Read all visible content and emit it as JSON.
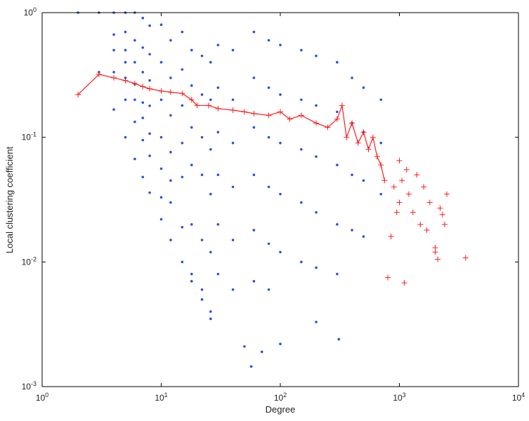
{
  "chart_data": {
    "type": "scatter",
    "title": "",
    "xlabel": "Degree",
    "ylabel": "Local clustering coefficient",
    "xscale": "log",
    "yscale": "log",
    "xlim": [
      1,
      10000
    ],
    "ylim": [
      0.001,
      1
    ],
    "grid": false,
    "legend": "none",
    "x_ticks": [
      {
        "base": "10",
        "exp": "0",
        "value": 1
      },
      {
        "base": "10",
        "exp": "1",
        "value": 10
      },
      {
        "base": "10",
        "exp": "2",
        "value": 100
      },
      {
        "base": "10",
        "exp": "3",
        "value": 1000
      },
      {
        "base": "10",
        "exp": "4",
        "value": 10000
      }
    ],
    "y_ticks": [
      {
        "base": "10",
        "exp": "-3",
        "value": 0.001
      },
      {
        "base": "10",
        "exp": "-2",
        "value": 0.01
      },
      {
        "base": "10",
        "exp": "-1",
        "value": 0.1
      },
      {
        "base": "10",
        "exp": "0",
        "value": 1
      }
    ],
    "colors": {
      "scatter": "#2a4ee8",
      "average": "#ff1a1a",
      "axes": "#000000"
    },
    "series": [
      {
        "kind": "scatter",
        "marker": "dot",
        "color": "#2a4ee8",
        "points": [
          [
            2,
            1.0
          ],
          [
            3,
            1.0
          ],
          [
            3,
            0.333
          ],
          [
            4,
            1.0
          ],
          [
            4,
            0.667
          ],
          [
            4,
            0.5
          ],
          [
            4,
            0.333
          ],
          [
            4,
            0.167
          ],
          [
            5,
            1.0
          ],
          [
            5,
            0.7
          ],
          [
            5,
            0.5
          ],
          [
            5,
            0.4
          ],
          [
            5,
            0.3
          ],
          [
            5,
            0.2
          ],
          [
            5,
            0.1
          ],
          [
            6,
            1.0
          ],
          [
            6,
            0.6
          ],
          [
            6,
            0.4
          ],
          [
            6,
            0.267
          ],
          [
            6,
            0.2
          ],
          [
            6,
            0.133
          ],
          [
            6,
            0.067
          ],
          [
            7,
            0.905
          ],
          [
            7,
            0.524
          ],
          [
            7,
            0.333
          ],
          [
            7,
            0.19
          ],
          [
            7,
            0.143
          ],
          [
            7,
            0.095
          ],
          [
            7,
            0.048
          ],
          [
            8,
            0.786
          ],
          [
            8,
            0.464
          ],
          [
            8,
            0.286
          ],
          [
            8,
            0.179
          ],
          [
            8,
            0.107
          ],
          [
            8,
            0.071
          ],
          [
            8,
            0.036
          ],
          [
            10,
            0.8
          ],
          [
            10,
            0.4
          ],
          [
            10,
            0.2
          ],
          [
            10,
            0.1
          ],
          [
            10,
            0.056
          ],
          [
            10,
            0.033
          ],
          [
            10,
            0.022
          ],
          [
            12,
            0.6
          ],
          [
            12,
            0.3
          ],
          [
            12,
            0.15
          ],
          [
            12,
            0.076
          ],
          [
            12,
            0.045
          ],
          [
            12,
            0.03
          ],
          [
            12,
            0.015
          ],
          [
            15,
            0.7
          ],
          [
            15,
            0.35
          ],
          [
            15,
            0.18
          ],
          [
            15,
            0.09
          ],
          [
            15,
            0.048
          ],
          [
            15,
            0.019
          ],
          [
            15,
            0.01
          ],
          [
            18,
            0.5
          ],
          [
            18,
            0.26
          ],
          [
            18,
            0.12
          ],
          [
            18,
            0.06
          ],
          [
            18,
            0.02
          ],
          [
            18,
            0.008
          ],
          [
            18,
            0.007
          ],
          [
            22,
            0.45
          ],
          [
            22,
            0.22
          ],
          [
            22,
            0.1
          ],
          [
            22,
            0.05
          ],
          [
            22,
            0.015
          ],
          [
            22,
            0.006
          ],
          [
            22,
            0.005
          ],
          [
            26,
            0.4
          ],
          [
            26,
            0.2
          ],
          [
            26,
            0.08
          ],
          [
            26,
            0.035
          ],
          [
            26,
            0.012
          ],
          [
            26,
            0.004
          ],
          [
            26,
            0.0035
          ],
          [
            30,
            0.55
          ],
          [
            30,
            0.25
          ],
          [
            30,
            0.11
          ],
          [
            30,
            0.05
          ],
          [
            30,
            0.02
          ],
          [
            30,
            0.008
          ],
          [
            40,
            0.5
          ],
          [
            40,
            0.2
          ],
          [
            40,
            0.09
          ],
          [
            40,
            0.04
          ],
          [
            40,
            0.015
          ],
          [
            40,
            0.006
          ],
          [
            50,
            0.0021
          ],
          [
            57,
            0.00145
          ],
          [
            70,
            0.0019
          ],
          [
            100,
            0.0022
          ],
          [
            200,
            0.0033
          ],
          [
            310,
            0.0024
          ],
          [
            60,
            0.7
          ],
          [
            60,
            0.3
          ],
          [
            60,
            0.12
          ],
          [
            60,
            0.05
          ],
          [
            60,
            0.018
          ],
          [
            60,
            0.007
          ],
          [
            80,
            0.6
          ],
          [
            80,
            0.25
          ],
          [
            80,
            0.1
          ],
          [
            80,
            0.04
          ],
          [
            80,
            0.014
          ],
          [
            80,
            0.006
          ],
          [
            100,
            0.55
          ],
          [
            100,
            0.22
          ],
          [
            100,
            0.09
          ],
          [
            100,
            0.035
          ],
          [
            100,
            0.012
          ],
          [
            150,
            0.5
          ],
          [
            150,
            0.2
          ],
          [
            150,
            0.08
          ],
          [
            150,
            0.03
          ],
          [
            150,
            0.01
          ],
          [
            200,
            0.45
          ],
          [
            200,
            0.18
          ],
          [
            200,
            0.07
          ],
          [
            200,
            0.025
          ],
          [
            200,
            0.009
          ],
          [
            300,
            0.4
          ],
          [
            300,
            0.16
          ],
          [
            300,
            0.06
          ],
          [
            300,
            0.02
          ],
          [
            300,
            0.008
          ],
          [
            400,
            0.3
          ],
          [
            400,
            0.13
          ],
          [
            400,
            0.05
          ],
          [
            400,
            0.018
          ],
          [
            500,
            0.25
          ],
          [
            500,
            0.11
          ],
          [
            500,
            0.045
          ],
          [
            500,
            0.016
          ],
          [
            700,
            0.2
          ],
          [
            700,
            0.09
          ],
          [
            700,
            0.035
          ]
        ]
      },
      {
        "kind": "line",
        "marker": "plus",
        "color": "#ff1a1a",
        "points": [
          [
            2,
            0.22
          ],
          [
            3,
            0.32
          ],
          [
            4,
            0.3
          ],
          [
            5,
            0.285
          ],
          [
            6,
            0.27
          ],
          [
            7,
            0.255
          ],
          [
            8,
            0.245
          ],
          [
            10,
            0.235
          ],
          [
            12,
            0.23
          ],
          [
            15,
            0.225
          ],
          [
            18,
            0.2
          ],
          [
            20,
            0.18
          ],
          [
            25,
            0.18
          ],
          [
            30,
            0.17
          ],
          [
            40,
            0.165
          ],
          [
            50,
            0.16
          ],
          [
            60,
            0.155
          ],
          [
            80,
            0.15
          ],
          [
            100,
            0.16
          ],
          [
            120,
            0.14
          ],
          [
            150,
            0.15
          ],
          [
            200,
            0.13
          ],
          [
            250,
            0.12
          ],
          [
            300,
            0.14
          ],
          [
            330,
            0.18
          ],
          [
            360,
            0.1
          ],
          [
            400,
            0.13
          ],
          [
            450,
            0.09
          ],
          [
            500,
            0.11
          ],
          [
            550,
            0.08
          ],
          [
            600,
            0.1
          ],
          [
            650,
            0.07
          ],
          [
            700,
            0.06
          ],
          [
            750,
            0.045
          ]
        ]
      },
      {
        "kind": "scatter",
        "marker": "plus",
        "color": "#ff1a1a",
        "points": [
          [
            1000,
            0.065
          ],
          [
            1000,
            0.03
          ],
          [
            1050,
            0.045
          ],
          [
            1100,
            0.0068
          ],
          [
            1150,
            0.055
          ],
          [
            1200,
            0.035
          ],
          [
            1300,
            0.025
          ],
          [
            1400,
            0.05
          ],
          [
            1500,
            0.02
          ],
          [
            1600,
            0.04
          ],
          [
            1800,
            0.03
          ],
          [
            2000,
            0.013
          ],
          [
            2000,
            0.012
          ],
          [
            2100,
            0.0105
          ],
          [
            2200,
            0.027
          ],
          [
            2300,
            0.024
          ],
          [
            2400,
            0.02
          ],
          [
            3600,
            0.0108
          ],
          [
            800,
            0.0075
          ],
          [
            850,
            0.016
          ],
          [
            900,
            0.04
          ],
          [
            950,
            0.025
          ],
          [
            1700,
            0.018
          ],
          [
            2500,
            0.035
          ]
        ]
      }
    ]
  }
}
